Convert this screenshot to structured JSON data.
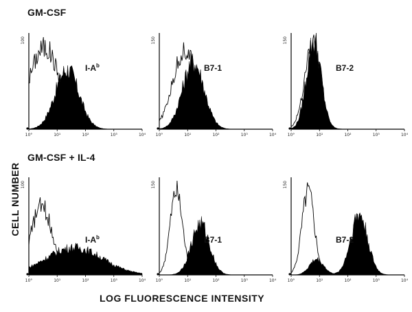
{
  "rows": [
    {
      "title": "GM-CSF"
    },
    {
      "title": "GM-CSF + IL-4"
    }
  ],
  "chart_data": {
    "type": "histogram-grid",
    "ylabel": "CELL NUMBER",
    "xlabel": "LOG FLUORESCENCE INTENSITY",
    "xscale": "log",
    "xlim": [
      1,
      10000
    ],
    "x_ticks": [
      "10°",
      "10¹",
      "10²",
      "10³",
      "10⁴"
    ],
    "y_ticks": [
      "0",
      "100"
    ],
    "colors": {
      "filled": "#000000",
      "outline": "#000000",
      "background": "#ffffff"
    },
    "panels": [
      {
        "row": 0,
        "col": 0,
        "label_main": "I-A",
        "label_sup": "b",
        "ymax_label": "100",
        "filled": {
          "peak_log": 1.35,
          "width": 0.42,
          "height": 0.62
        },
        "control": {
          "peak_log": 0.55,
          "width": 0.55,
          "height": 0.85
        }
      },
      {
        "row": 0,
        "col": 1,
        "label_main": "B7-1",
        "label_sup": "",
        "ymax_label": "150",
        "filled": {
          "peak_log": 1.2,
          "width": 0.38,
          "height": 0.7
        },
        "control": {
          "peak_log": 0.9,
          "width": 0.42,
          "height": 0.82
        }
      },
      {
        "row": 0,
        "col": 2,
        "label_main": "B7-2",
        "label_sup": "",
        "ymax_label": "150",
        "filled": {
          "peak_log": 0.8,
          "width": 0.26,
          "height": 0.92
        },
        "control": {
          "peak_log": 0.75,
          "width": 0.28,
          "height": 0.88
        }
      },
      {
        "row": 1,
        "col": 0,
        "label_main": "I-A",
        "label_sup": "b",
        "ymax_label": "100",
        "filled": {
          "peak_log": 1.6,
          "width": 1.0,
          "height": 0.28
        },
        "control": {
          "peak_log": 0.45,
          "width": 0.38,
          "height": 0.7
        }
      },
      {
        "row": 1,
        "col": 1,
        "label_main": "B7-1",
        "label_sup": "",
        "ymax_label": "150",
        "filled": {
          "peak_log": 1.45,
          "width": 0.32,
          "height": 0.52
        },
        "control": {
          "peak_log": 0.6,
          "width": 0.22,
          "height": 0.85
        }
      },
      {
        "row": 1,
        "col": 2,
        "label_main": "B7-2",
        "label_sup": "",
        "ymax_label": "150",
        "filled": {
          "peak_log": 2.4,
          "width": 0.3,
          "height": 0.62,
          "minor_peak_log": 0.9,
          "minor_height": 0.16
        },
        "control": {
          "peak_log": 0.6,
          "width": 0.22,
          "height": 0.88
        }
      }
    ]
  }
}
